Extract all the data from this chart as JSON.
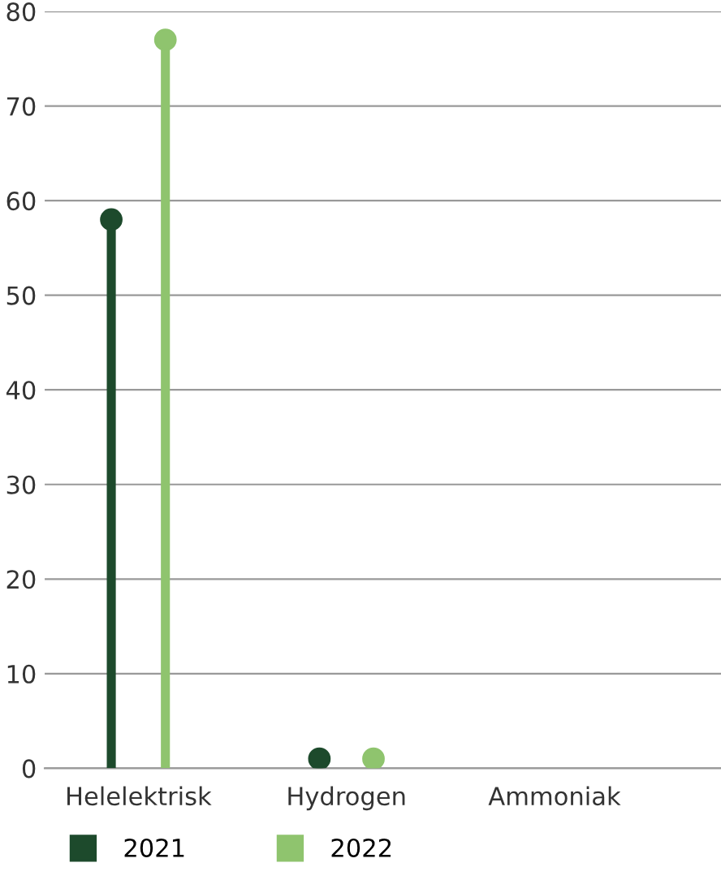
{
  "chart_data": {
    "type": "lollipop",
    "categories": [
      "Helelektrisk",
      "Hydrogen",
      "Ammoniak"
    ],
    "series": [
      {
        "name": "2021",
        "color": "#1d4a2c",
        "values": [
          58,
          1,
          null
        ]
      },
      {
        "name": "2022",
        "color": "#8fc46e",
        "values": [
          77,
          1,
          null
        ]
      }
    ],
    "ylim": [
      0,
      80
    ],
    "yticks": [
      0,
      10,
      20,
      30,
      40,
      50,
      60,
      70,
      80
    ],
    "grid": "y",
    "legend": "bottom left",
    "marker": "circle"
  }
}
